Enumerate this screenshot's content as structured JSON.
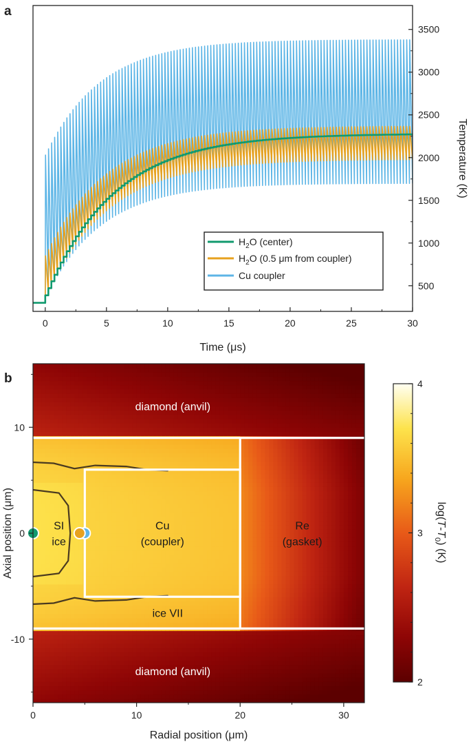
{
  "chart_data": [
    {
      "type": "line",
      "panel_label": "a",
      "xlabel": "Time (μs)",
      "ylabel": "Temperature (K)",
      "xlim": [
        -1,
        30
      ],
      "ylim": [
        200,
        3780
      ],
      "x_ticks": [
        0,
        5,
        10,
        15,
        20,
        25,
        30
      ],
      "y_ticks": [
        500,
        1000,
        1500,
        2000,
        2500,
        3000,
        3500
      ],
      "base_temperature": 300,
      "pulse_start": 0,
      "pulse_period": 0.25,
      "series": [
        {
          "name": "H₂O (center)",
          "legend_main": "H",
          "legend_sub": "2",
          "legend_rest": "O (center)",
          "color": "#119a6e",
          "style": "staircase",
          "plateau": 2280,
          "tau": 5.5
        },
        {
          "name": "H₂O (0.5 μm from coupler)",
          "legend_main": "H",
          "legend_sub": "2",
          "legend_rest": "O (0.5 μm from coupler)",
          "color": "#e7a11e",
          "style": "oscillating",
          "max_plateau": 2370,
          "min_plateau": 1980,
          "first_max": 850,
          "first_min": 420,
          "tau": 5
        },
        {
          "name": "Cu coupler",
          "legend_main": "Cu coupler",
          "legend_sub": "",
          "legend_rest": "",
          "color": "#5db5e6",
          "style": "oscillating",
          "max_plateau": 3380,
          "min_plateau": 1700,
          "first_max": 2030,
          "first_min": 420,
          "tau": 4.5
        }
      ]
    },
    {
      "type": "heatmap",
      "panel_label": "b",
      "xlabel": "Radial position (μm)",
      "ylabel": "Axial position (μm)",
      "xlim": [
        0,
        32
      ],
      "ylim": [
        -16,
        16
      ],
      "x_ticks": [
        0,
        10,
        20,
        30
      ],
      "y_ticks": [
        -10,
        0,
        10
      ],
      "colorbar_label_parts": [
        "log(",
        "T",
        "-",
        "T",
        "0",
        ") (K)"
      ],
      "colorbar_range": [
        2,
        4
      ],
      "colorbar_ticks": [
        2,
        3,
        4
      ],
      "boundaries": {
        "sample_top": 9,
        "sample_bottom": -9,
        "gasket_r": 20,
        "cu_r_min": 5,
        "cu_r_max": 20,
        "cu_top": 6,
        "cu_bottom": -6
      },
      "regions": [
        {
          "name": "diamond-top",
          "lines": [
            "diamond (anvil)"
          ],
          "x": 13.5,
          "y": 12
        },
        {
          "name": "diamond-bottom",
          "lines": [
            "diamond (anvil)"
          ],
          "x": 13.5,
          "y": -13
        },
        {
          "name": "si-ice",
          "lines": [
            "SI",
            "ice"
          ],
          "x": 2.5,
          "y": 0
        },
        {
          "name": "cu-coupler",
          "lines": [
            "Cu",
            "(coupler)"
          ],
          "x": 12.5,
          "y": 0
        },
        {
          "name": "re-gasket",
          "lines": [
            "Re",
            "(gasket)"
          ],
          "x": 26,
          "y": 0
        },
        {
          "name": "ice-vii",
          "lines": [
            "ice VII"
          ],
          "x": 13,
          "y": -7.5
        }
      ],
      "markers": [
        {
          "name": "center",
          "r": 0,
          "z": 0,
          "color": "#119a6e"
        },
        {
          "name": "near-coupler",
          "r": 4.5,
          "z": 0,
          "color": "#e7a11e"
        },
        {
          "name": "coupler",
          "r": 5,
          "z": 0,
          "color": "#5db5e6"
        }
      ]
    }
  ]
}
